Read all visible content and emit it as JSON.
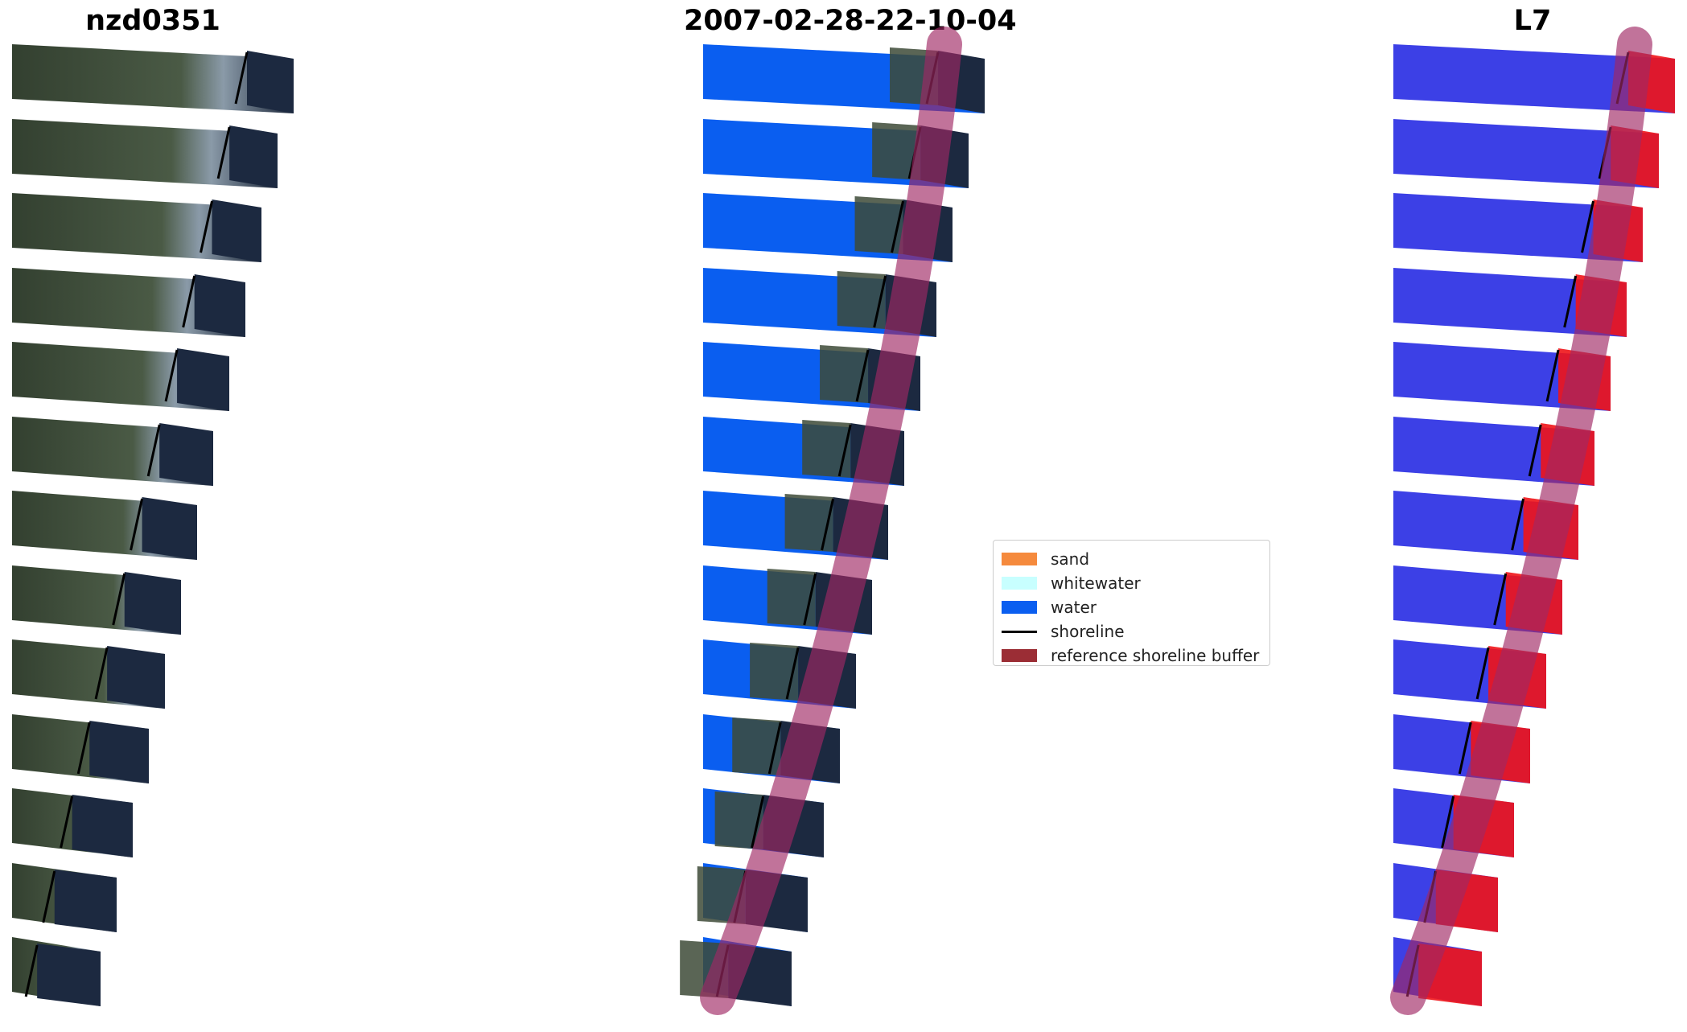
{
  "titles": {
    "site": "nzd0351",
    "date": "2007-02-28-22-10-04",
    "satellite": "L7"
  },
  "legend": {
    "items": [
      {
        "label": "sand",
        "color": "#f58a3d",
        "kind": "patch"
      },
      {
        "label": "whitewater",
        "color": "#c8ffff",
        "kind": "patch"
      },
      {
        "label": "water",
        "color": "#0a5ef0",
        "kind": "patch"
      },
      {
        "label": "shoreline",
        "color": "#000000",
        "kind": "line"
      },
      {
        "label": "reference shoreline buffer",
        "color": "#9b2d35",
        "kind": "patch"
      }
    ]
  },
  "colors": {
    "rgb_land": "#3d4a37",
    "rgb_sea": "#1c2940",
    "class_water": "#0a5ef0",
    "index_water": "#3c40e6",
    "index_land": "#f01418",
    "buffer_overlay": "#a02864"
  }
}
